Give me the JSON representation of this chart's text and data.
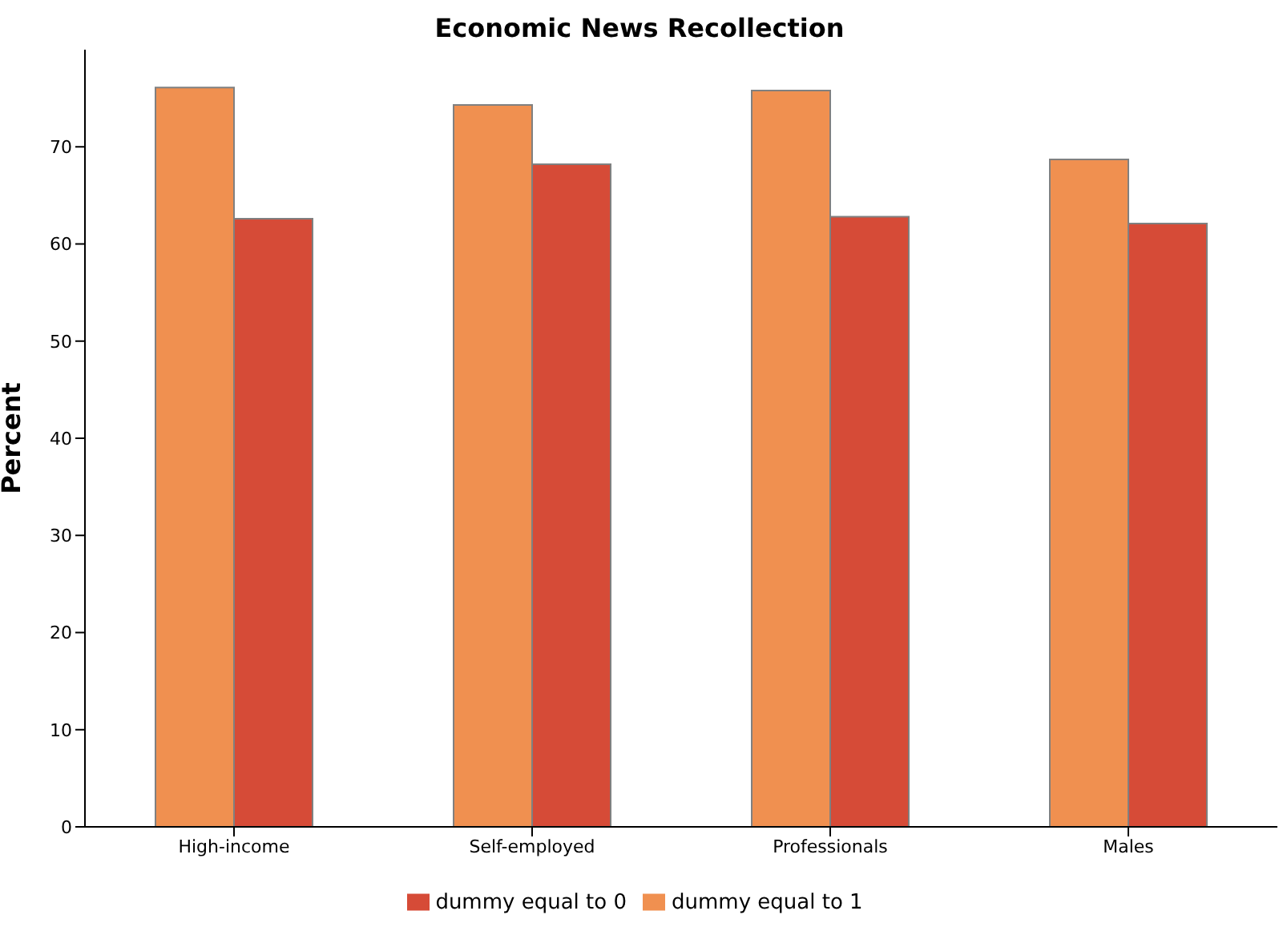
{
  "chart_data": {
    "type": "bar",
    "title": "Economic News Recollection",
    "ylabel": "Percent",
    "categories": [
      "High-income",
      "Self-employed",
      "Professionals",
      "Males"
    ],
    "series": [
      {
        "name": "dummy equal to 1",
        "color": "#f09050",
        "values": [
          76.1,
          74.3,
          75.8,
          68.7
        ]
      },
      {
        "name": "dummy equal to 0",
        "color": "#d64b37",
        "values": [
          62.6,
          68.2,
          62.8,
          62.1
        ]
      }
    ],
    "ylim": [
      0,
      80
    ],
    "yticks": [
      0,
      10,
      20,
      30,
      40,
      50,
      60,
      70
    ],
    "grid": false,
    "legend": "bottom"
  }
}
